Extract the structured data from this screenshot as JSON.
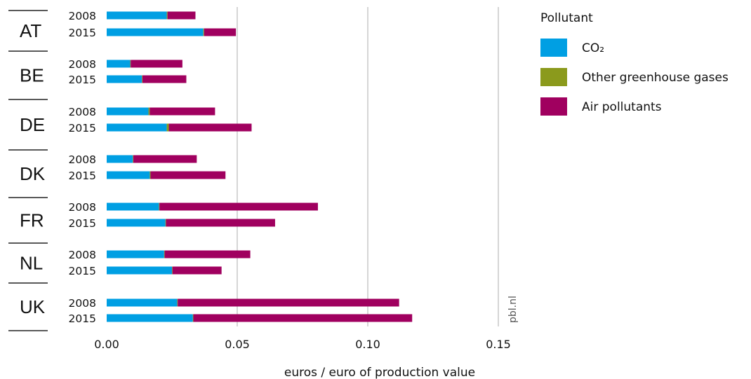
{
  "chart_data": {
    "type": "bar",
    "orientation": "horizontal",
    "stacked": true,
    "groups": [
      "AT",
      "BE",
      "DE",
      "DK",
      "FR",
      "NL",
      "UK"
    ],
    "years": [
      "2008",
      "2015"
    ],
    "xlabel": "euros / euro of production value",
    "xlim": [
      0,
      0.15
    ],
    "x_ticks": [
      "0.00",
      "0.05",
      "0.10",
      "0.15"
    ],
    "x_tick_values": [
      0,
      0.05,
      0.1,
      0.15
    ],
    "grid": "vertical",
    "legend": {
      "title": "Pollutant",
      "placement": "right"
    },
    "source_label": "pbl.nl",
    "series": [
      {
        "name": "CO₂",
        "color": "#009fe3",
        "values": [
          [
            0.023,
            0.037
          ],
          [
            0.009,
            0.0135
          ],
          [
            0.016,
            0.023
          ],
          [
            0.01,
            0.0165
          ],
          [
            0.02,
            0.0225
          ],
          [
            0.022,
            0.025
          ],
          [
            0.027,
            0.033
          ]
        ]
      },
      {
        "name": "Other greenhouse gases",
        "color": "#8b9a1c",
        "values": [
          [
            0.0003,
            0.0003
          ],
          [
            0.0002,
            0.0002
          ],
          [
            0.0005,
            0.0008
          ],
          [
            0.0002,
            0.0003
          ],
          [
            0.0002,
            0.0002
          ],
          [
            0.0002,
            0.0002
          ],
          [
            0.0002,
            0.0002
          ]
        ]
      },
      {
        "name": "Air pollutants",
        "color": "#a0005f",
        "values": [
          [
            0.0107,
            0.0122
          ],
          [
            0.0198,
            0.0168
          ],
          [
            0.025,
            0.0317
          ],
          [
            0.0243,
            0.0287
          ],
          [
            0.0607,
            0.0418
          ],
          [
            0.0328,
            0.0188
          ],
          [
            0.0848,
            0.0838
          ]
        ]
      }
    ]
  }
}
